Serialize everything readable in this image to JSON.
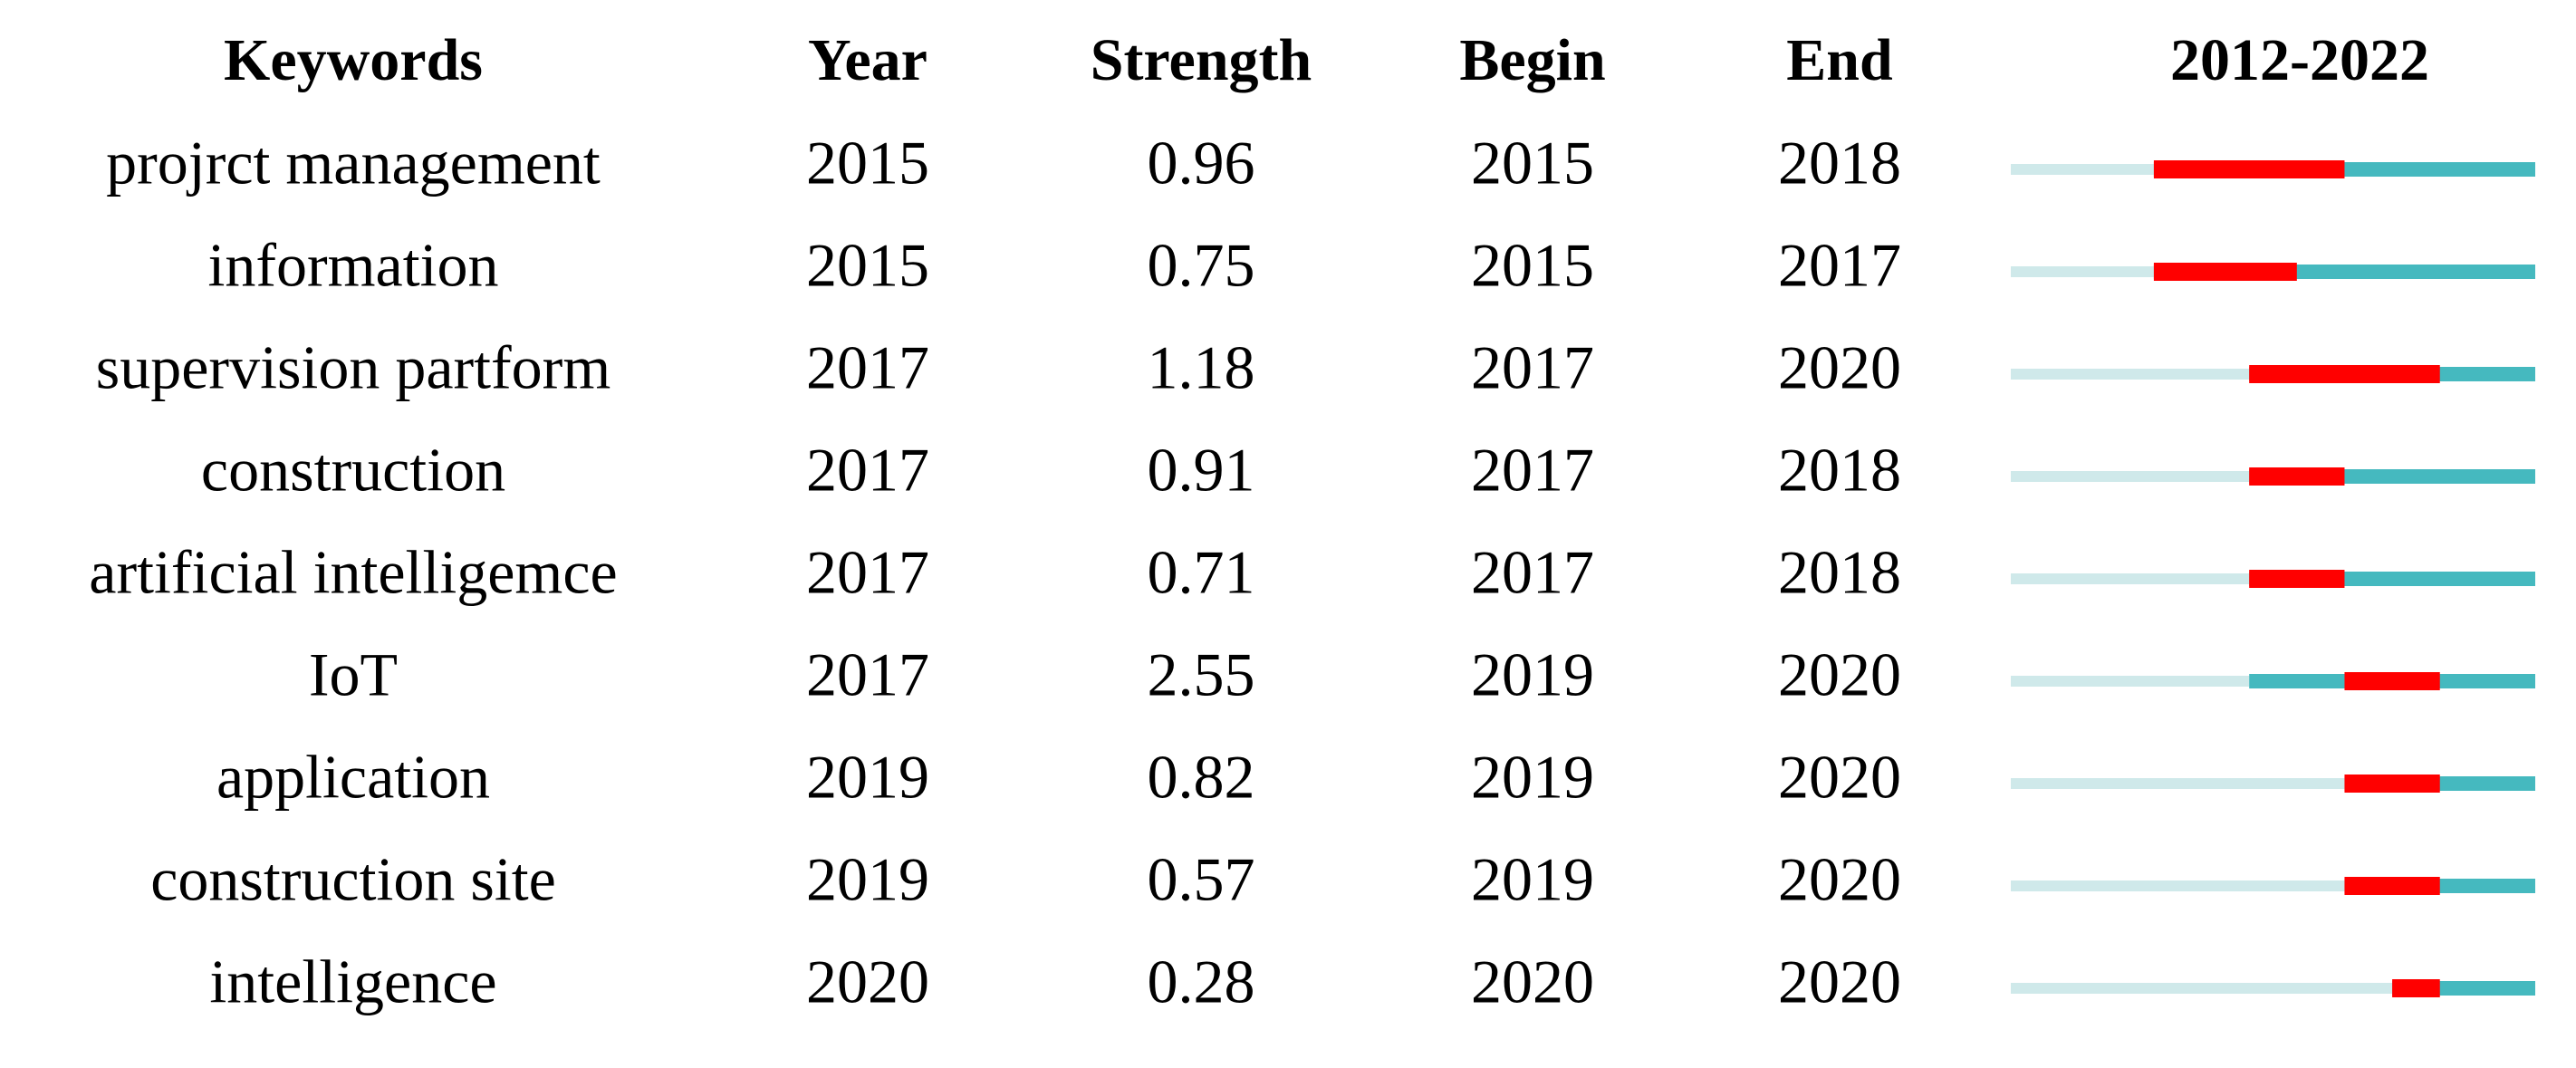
{
  "table": {
    "header": [
      "Keywords",
      "Year",
      "Strength",
      "Begin",
      "End",
      "2012-2022"
    ],
    "rows": [
      [
        "projrct management",
        2015,
        0.96,
        2015,
        2018
      ],
      [
        "information",
        2015,
        0.75,
        2015,
        2017
      ],
      [
        "supervision partform",
        2017,
        1.18,
        2017,
        2020
      ],
      [
        "construction",
        2017,
        0.91,
        2017,
        2018
      ],
      [
        "artificial intelligemce",
        2017,
        0.71,
        2017,
        2018
      ],
      [
        "IoT",
        2017,
        2.55,
        2019,
        2020
      ],
      [
        "application",
        2019,
        0.82,
        2019,
        2020
      ],
      [
        "construction site",
        2019,
        0.57,
        2019,
        2020
      ],
      [
        "intelligence",
        2020,
        0.28,
        2020,
        2020
      ]
    ]
  }
}
